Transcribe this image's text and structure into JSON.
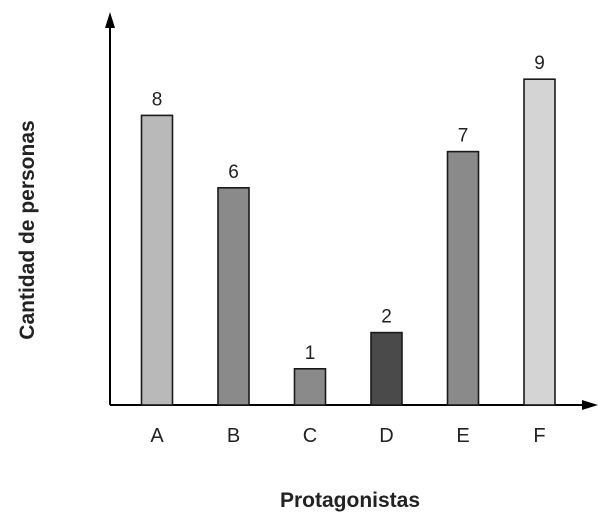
{
  "chart_data": {
    "type": "bar",
    "categories": [
      "A",
      "B",
      "C",
      "D",
      "E",
      "F"
    ],
    "values": [
      8,
      6,
      1,
      2,
      7,
      9
    ],
    "bar_colors": [
      "#b9b9b9",
      "#8a8a8a",
      "#8a8a8a",
      "#4a4a4a",
      "#8a8a8a",
      "#d4d4d4"
    ],
    "data_labels": [
      "8",
      "6",
      "1",
      "2",
      "7",
      "9"
    ],
    "title": "",
    "xlabel": "Protagonistas",
    "ylabel": "Cantidad de personas",
    "ylim": [
      0,
      9
    ],
    "grid": false,
    "legend": "none"
  }
}
